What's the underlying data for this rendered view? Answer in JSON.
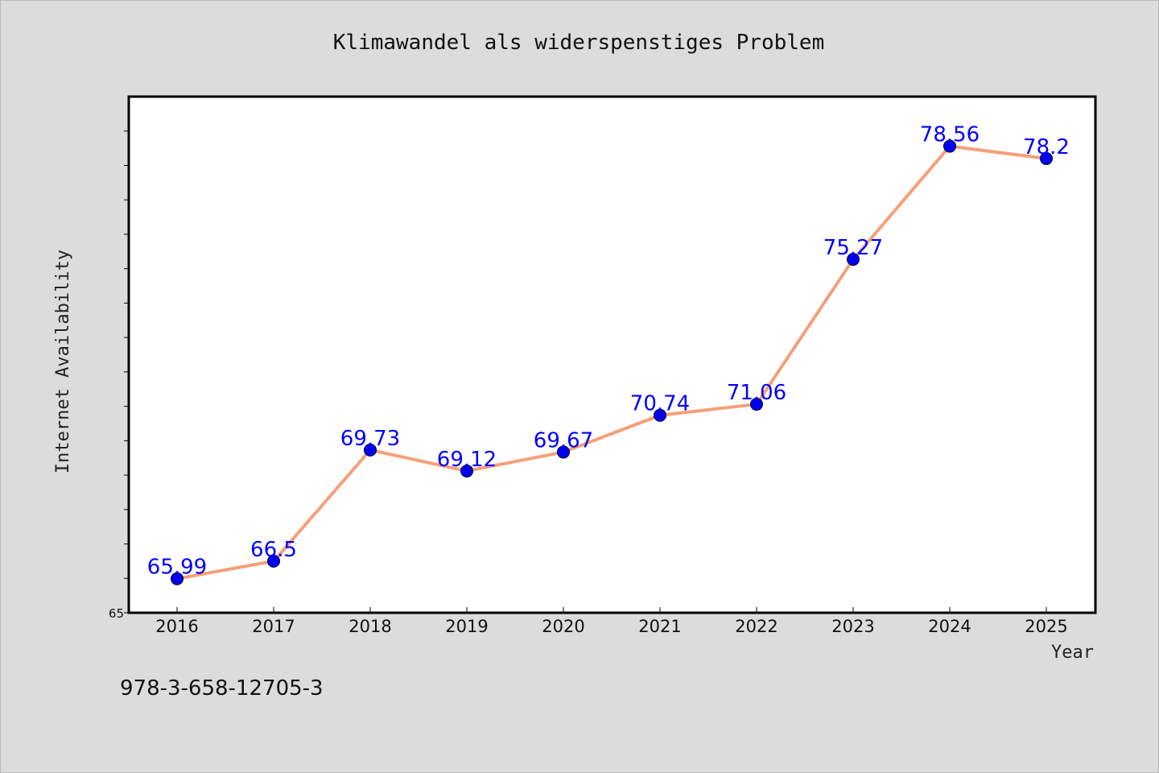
{
  "colors": {
    "background": "#dcdcdc",
    "plot_background": "#ffffff",
    "line": "#f5a07a",
    "marker": "#0000ee",
    "data_label": "#0000ff"
  },
  "footer": {
    "isbn": "978-3-658-12705-3"
  },
  "chart_data": {
    "type": "line",
    "title": "Klimawandel als widerspenstiges Problem",
    "xlabel": "Year",
    "ylabel": "Internet Availability",
    "categories": [
      "2016",
      "2017",
      "2018",
      "2019",
      "2020",
      "2021",
      "2022",
      "2023",
      "2024",
      "2025"
    ],
    "series": [
      {
        "values": [
          65.99,
          66.5,
          69.73,
          69.12,
          69.67,
          70.74,
          71.06,
          75.27,
          78.56,
          78.2
        ],
        "labels": [
          "65.99",
          "66.5",
          "69.73",
          "69.12",
          "69.67",
          "70.74",
          "71.06",
          "75.27",
          "78.56",
          "78.2"
        ]
      }
    ],
    "ylim": [
      65,
      80
    ],
    "y_tick_step": 1,
    "y_tick_labels": [
      "65"
    ],
    "grid": false,
    "legend": "none"
  }
}
